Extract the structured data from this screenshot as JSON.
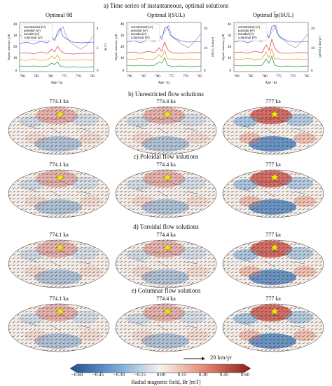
{
  "headings": {
    "a": "a) Time series of instantaneous, optimal solutions",
    "b": "b) Unrestricted flow solutions",
    "c": "c) Poloidal flow solutions",
    "d": "d) Toroidal flow solutions",
    "e": "e) Columnar flow solutions"
  },
  "timeseries": [
    {
      "title": "Optimal θ̃d",
      "right_label": "θd [°]",
      "right_ticks": [
        "4",
        "2",
        "0"
      ]
    },
    {
      "title": "Optimal l(SUL)",
      "right_label": "l(SUL) [km/yr]",
      "right_ticks": [
        "20",
        "10",
        "0"
      ]
    },
    {
      "title": "Optimal l̃p(SUL)",
      "right_label": "lp(SUL) [km/yr]",
      "right_ticks": [
        "20",
        "10",
        "0"
      ]
    }
  ],
  "ts_common": {
    "left_label": "Dipole intensity [μT]",
    "left_ticks": [
      "40",
      "30",
      "20",
      "10",
      "0"
    ],
    "x_ticks": [
      "790",
      "785",
      "780",
      "775",
      "770",
      "765"
    ],
    "x_label": "Age / ka",
    "legend": [
      "unrestricted (v¹)",
      "poloidal (vᵖ)",
      "toroidal (vᵗ)",
      "columnar (vᶜ)"
    ],
    "series_colors": {
      "gray": "#9a9a9a",
      "blue": "#5a6be8",
      "red": "#e24a4a",
      "orange": "#e3a42c",
      "green": "#3aa046"
    }
  },
  "map_epochs": [
    "774.1 ka",
    "774.4 ka",
    "777 ka"
  ],
  "scale_label": "20 km/yr",
  "colorbar": {
    "ticks": [
      "−0.60",
      "−0.45",
      "−0.30",
      "−0.15",
      "0.00",
      "0.15",
      "0.30",
      "0.45",
      "0.60"
    ],
    "label": "Radial magnetic field, Br [mT]",
    "colors": {
      "neg": "#1f4e8c",
      "zero": "#f7f2ee",
      "pos": "#8c1c1c"
    }
  }
}
